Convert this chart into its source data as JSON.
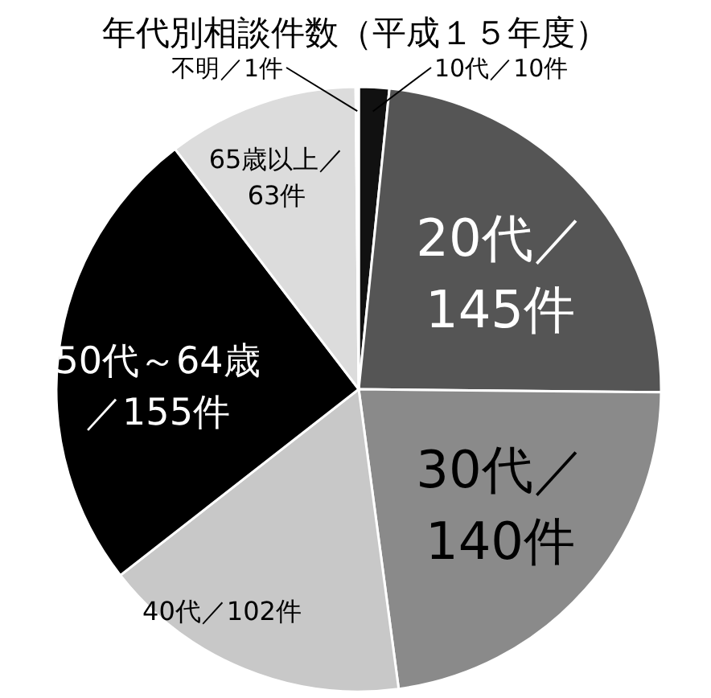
{
  "chart_data": {
    "type": "pie",
    "title": "年代別相談件数（平成１５年度）",
    "categories": [
      "10代／",
      "20代／",
      "30代／",
      "40代／",
      "50代～64歳",
      "65歳以上／",
      "不明／"
    ],
    "values": [
      10,
      145,
      140,
      102,
      155,
      63,
      1
    ],
    "value_labels": [
      "10件",
      "145件",
      "140件",
      "102件",
      "／155件",
      "63件",
      "1件"
    ],
    "colors": [
      "#111111",
      "#555555",
      "#8a8a8a",
      "#c8c8c8",
      "#000000",
      "#dcdcdc",
      "#ffffff"
    ]
  }
}
